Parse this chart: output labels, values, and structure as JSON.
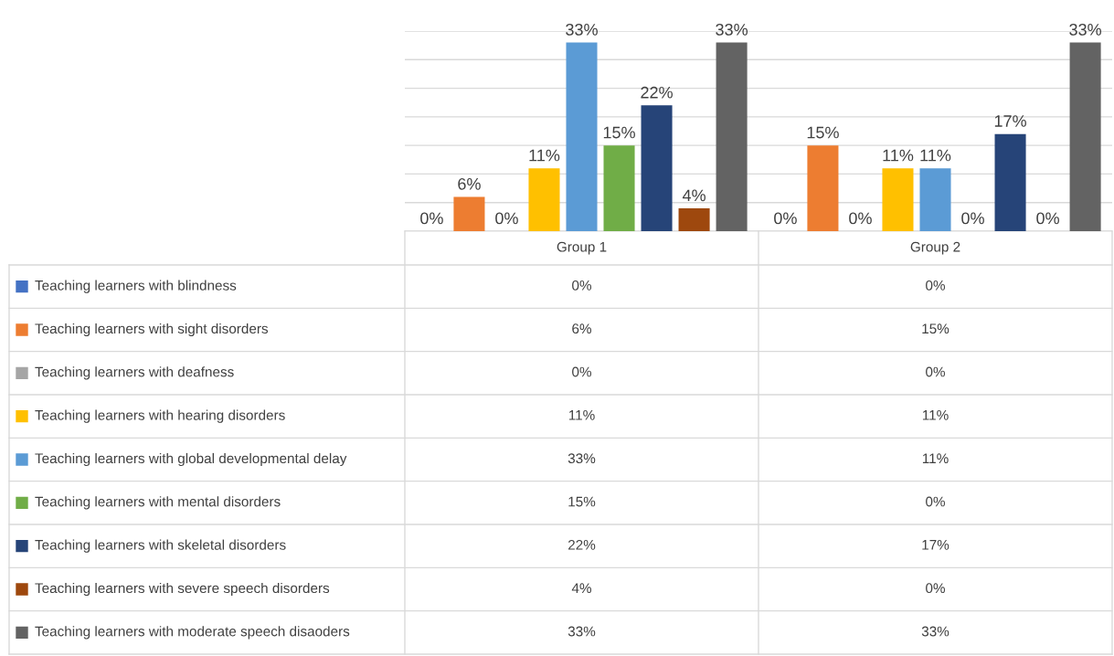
{
  "chart_data": {
    "type": "bar",
    "categories": [
      "Group 1",
      "Group 2"
    ],
    "series": [
      {
        "name": "Teaching learners with blindness",
        "color": "#4472c4",
        "values": [
          0,
          0
        ],
        "value_labels": [
          "0%",
          "0%"
        ]
      },
      {
        "name": "Teaching learners with sight disorders",
        "color": "#ed7d31",
        "values": [
          6,
          15
        ],
        "value_labels": [
          "6%",
          "15%"
        ]
      },
      {
        "name": "Teaching learners with deafness",
        "color": "#a5a5a5",
        "values": [
          0,
          0
        ],
        "value_labels": [
          "0%",
          "0%"
        ]
      },
      {
        "name": "Teaching learners with hearing disorders",
        "color": "#ffc000",
        "values": [
          11,
          11
        ],
        "value_labels": [
          "11%",
          "11%"
        ]
      },
      {
        "name": "Teaching learners with global developmental delay",
        "color": "#5b9bd5",
        "values": [
          33,
          11
        ],
        "value_labels": [
          "33%",
          "11%"
        ]
      },
      {
        "name": "Teaching learners with mental disorders",
        "color": "#70ad47",
        "values": [
          15,
          0
        ],
        "value_labels": [
          "15%",
          "0%"
        ]
      },
      {
        "name": "Teaching learners with skeletal disorders",
        "color": "#264478",
        "values": [
          22,
          17
        ],
        "value_labels": [
          "22%",
          "17%"
        ]
      },
      {
        "name": "Teaching learners with severe speech disorders",
        "color": "#9e480e",
        "values": [
          4,
          0
        ],
        "value_labels": [
          "4%",
          "0%"
        ]
      },
      {
        "name": "Teaching learners with moderate speech disaoders",
        "color": "#636363",
        "values": [
          33,
          33
        ],
        "value_labels": [
          "33%",
          "33%"
        ]
      }
    ],
    "ylim": [
      0,
      35
    ],
    "yticks": [
      {
        "value": 0,
        "label": null
      },
      {
        "value": 5,
        "label": null
      },
      {
        "value": 10,
        "label": null
      },
      {
        "value": 15,
        "label": null
      },
      {
        "value": 20,
        "label": null
      },
      {
        "value": 25,
        "label": null
      },
      {
        "value": 30,
        "label": null
      },
      {
        "value": 35,
        "label": null
      }
    ],
    "grid": "y",
    "legend": "bottom left"
  }
}
